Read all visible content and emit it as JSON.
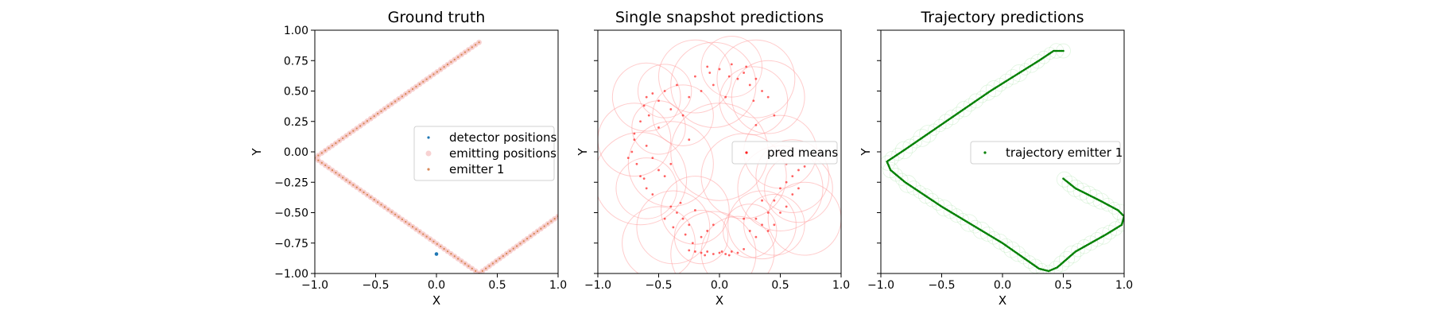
{
  "chart_data": [
    {
      "type": "scatter",
      "title": "Ground truth",
      "xlabel": "X",
      "ylabel": "Y",
      "xlim": [
        -1.0,
        1.0
      ],
      "ylim": [
        -1.0,
        1.0
      ],
      "xticks": [
        "−1.0",
        "−0.5",
        "0.0",
        "0.5",
        "1.0"
      ],
      "yticks": [
        "−1.00",
        "−0.75",
        "−0.50",
        "−0.25",
        "0.00",
        "0.25",
        "0.50",
        "0.75",
        "1.00"
      ],
      "legend_position": "center-right",
      "series": [
        {
          "name": "detector positions",
          "color": "#1f77b4",
          "points": [
            [
              0.0,
              -0.84
            ]
          ]
        },
        {
          "name": "emitting positions",
          "color": "#f4b4b4",
          "path": [
            [
              0.35,
              0.9
            ],
            [
              -1.0,
              -0.05
            ],
            [
              0.35,
              -1.0
            ],
            [
              1.0,
              -0.53
            ]
          ]
        },
        {
          "name": "emitter 1",
          "color": "#d98a5a",
          "path": [
            [
              0.35,
              0.9
            ],
            [
              -1.0,
              -0.05
            ],
            [
              0.35,
              -1.0
            ],
            [
              1.0,
              -0.53
            ]
          ]
        }
      ]
    },
    {
      "type": "scatter",
      "title": "Single snapshot predictions",
      "xlabel": "X",
      "ylabel": "Y",
      "xlim": [
        -1.0,
        1.0
      ],
      "ylim": [
        -1.0,
        1.0
      ],
      "xticks": [
        "−1.0",
        "−0.5",
        "0.0",
        "0.5",
        "1.0"
      ],
      "yticks": [],
      "legend_position": "center-right",
      "series": [
        {
          "name": "pred means",
          "color": "#ff2020",
          "points": [
            [
              -0.6,
              0.45
            ],
            [
              -0.55,
              0.48
            ],
            [
              -0.62,
              0.38
            ],
            [
              -0.5,
              0.42
            ],
            [
              -0.45,
              0.5
            ],
            [
              -0.58,
              0.3
            ],
            [
              -0.65,
              0.25
            ],
            [
              -0.4,
              0.35
            ],
            [
              -0.35,
              0.55
            ],
            [
              -0.2,
              0.62
            ],
            [
              -0.1,
              0.7
            ],
            [
              0.0,
              0.68
            ],
            [
              0.1,
              0.72
            ],
            [
              0.2,
              0.65
            ],
            [
              0.3,
              0.6
            ],
            [
              0.35,
              0.5
            ],
            [
              0.4,
              0.45
            ],
            [
              0.25,
              0.55
            ],
            [
              0.15,
              0.6
            ],
            [
              -0.05,
              0.55
            ],
            [
              -0.25,
              0.45
            ],
            [
              -0.3,
              0.3
            ],
            [
              0.45,
              0.3
            ],
            [
              0.3,
              0.22
            ],
            [
              0.05,
              0.45
            ],
            [
              -0.15,
              0.5
            ],
            [
              0.08,
              0.62
            ],
            [
              -0.08,
              0.65
            ],
            [
              0.22,
              0.7
            ],
            [
              0.28,
              0.42
            ],
            [
              -0.7,
              0.1
            ],
            [
              -0.72,
              0.0
            ],
            [
              -0.68,
              -0.1
            ],
            [
              -0.65,
              -0.2
            ],
            [
              -0.6,
              -0.3
            ],
            [
              -0.55,
              -0.35
            ],
            [
              -0.7,
              0.15
            ],
            [
              -0.6,
              0.05
            ],
            [
              -0.55,
              -0.05
            ],
            [
              -0.5,
              -0.15
            ],
            [
              -0.45,
              -0.2
            ],
            [
              -0.75,
              -0.05
            ],
            [
              -0.5,
              0.2
            ],
            [
              -0.62,
              -0.22
            ],
            [
              -0.4,
              -0.1
            ],
            [
              -0.4,
              -0.45
            ],
            [
              -0.35,
              -0.5
            ],
            [
              -0.3,
              -0.55
            ],
            [
              -0.25,
              -0.6
            ],
            [
              -0.38,
              -0.62
            ],
            [
              -0.32,
              -0.42
            ],
            [
              -0.2,
              -0.48
            ],
            [
              -0.45,
              -0.55
            ],
            [
              -0.15,
              -0.7
            ],
            [
              -0.1,
              -0.65
            ],
            [
              -0.22,
              -0.75
            ],
            [
              -0.28,
              -0.68
            ],
            [
              -0.05,
              -0.6
            ],
            [
              -0.2,
              -0.82
            ],
            [
              -0.15,
              -0.83
            ],
            [
              -0.1,
              -0.82
            ],
            [
              -0.05,
              -0.84
            ],
            [
              0.0,
              -0.83
            ],
            [
              0.05,
              -0.84
            ],
            [
              0.1,
              -0.82
            ],
            [
              0.15,
              -0.83
            ],
            [
              -0.25,
              -0.81
            ],
            [
              0.2,
              -0.8
            ],
            [
              -0.12,
              -0.85
            ],
            [
              0.02,
              -0.82
            ],
            [
              0.08,
              -0.85
            ],
            [
              0.3,
              -0.7
            ],
            [
              0.35,
              -0.6
            ],
            [
              0.4,
              -0.5
            ],
            [
              0.45,
              -0.4
            ],
            [
              0.5,
              -0.3
            ],
            [
              0.55,
              -0.25
            ],
            [
              0.6,
              -0.2
            ],
            [
              0.65,
              -0.15
            ],
            [
              0.5,
              -0.5
            ],
            [
              0.55,
              -0.45
            ],
            [
              0.45,
              -0.6
            ],
            [
              0.6,
              -0.35
            ],
            [
              0.7,
              -0.12
            ],
            [
              0.65,
              -0.3
            ],
            [
              0.3,
              -0.55
            ],
            [
              0.25,
              -0.65
            ],
            [
              0.4,
              -0.65
            ],
            [
              0.55,
              -0.1
            ],
            [
              0.35,
              -0.4
            ],
            [
              0.2,
              -0.55
            ],
            [
              -0.25,
              0.1
            ],
            [
              0.5,
              0.0
            ]
          ]
        }
      ],
      "uncertainty": [
        [
          -0.6,
          0.45,
          0.28
        ],
        [
          -0.45,
          0.5,
          0.22
        ],
        [
          -0.2,
          0.62,
          0.3
        ],
        [
          0.1,
          0.7,
          0.25
        ],
        [
          0.3,
          0.6,
          0.32
        ],
        [
          -0.05,
          0.55,
          0.35
        ],
        [
          0.28,
          0.42,
          0.28
        ],
        [
          -0.7,
          0.1,
          0.3
        ],
        [
          -0.6,
          -0.3,
          0.25
        ],
        [
          -0.5,
          0.2,
          0.22
        ],
        [
          -0.4,
          -0.1,
          0.35
        ],
        [
          -0.38,
          -0.62,
          0.3
        ],
        [
          -0.2,
          -0.48,
          0.28
        ],
        [
          -0.15,
          -0.7,
          0.22
        ],
        [
          -0.05,
          -0.84,
          0.35
        ],
        [
          0.15,
          -0.83,
          0.3
        ],
        [
          0.35,
          -0.6,
          0.28
        ],
        [
          0.5,
          -0.3,
          0.35
        ],
        [
          0.6,
          -0.2,
          0.3
        ],
        [
          0.45,
          -0.6,
          0.25
        ],
        [
          0.65,
          -0.3,
          0.28
        ],
        [
          0.25,
          -0.65,
          0.22
        ],
        [
          0.4,
          0.45,
          0.3
        ],
        [
          -0.3,
          0.3,
          0.25
        ],
        [
          0.0,
          0.0,
          0.4
        ],
        [
          0.5,
          0.0,
          0.3
        ],
        [
          -0.65,
          -0.22,
          0.38
        ],
        [
          0.2,
          -0.2,
          0.35
        ],
        [
          -0.5,
          -0.75,
          0.3
        ],
        [
          0.7,
          -0.55,
          0.3
        ]
      ]
    },
    {
      "type": "scatter",
      "title": "Trajectory predictions",
      "xlabel": "X",
      "ylabel": "Y",
      "xlim": [
        -1.0,
        1.0
      ],
      "ylim": [
        -1.0,
        1.0
      ],
      "xticks": [
        "−1.0",
        "−0.5",
        "0.0",
        "0.5",
        "1.0"
      ],
      "yticks": [],
      "legend_position": "center-right",
      "series": [
        {
          "name": "trajectory emitter 1",
          "color": "#008000",
          "path": [
            [
              0.5,
              0.83
            ],
            [
              0.42,
              0.83
            ],
            [
              0.3,
              0.75
            ],
            [
              -0.1,
              0.5
            ],
            [
              -0.8,
              0.02
            ],
            [
              -0.95,
              -0.08
            ],
            [
              -0.92,
              -0.15
            ],
            [
              -0.8,
              -0.25
            ],
            [
              -0.5,
              -0.45
            ],
            [
              0.0,
              -0.75
            ],
            [
              0.3,
              -0.96
            ],
            [
              0.38,
              -0.98
            ],
            [
              0.45,
              -0.95
            ],
            [
              0.6,
              -0.82
            ],
            [
              0.85,
              -0.68
            ],
            [
              0.98,
              -0.6
            ],
            [
              1.0,
              -0.53
            ],
            [
              0.95,
              -0.48
            ],
            [
              0.8,
              -0.4
            ],
            [
              0.6,
              -0.3
            ],
            [
              0.5,
              -0.22
            ]
          ]
        }
      ]
    }
  ]
}
